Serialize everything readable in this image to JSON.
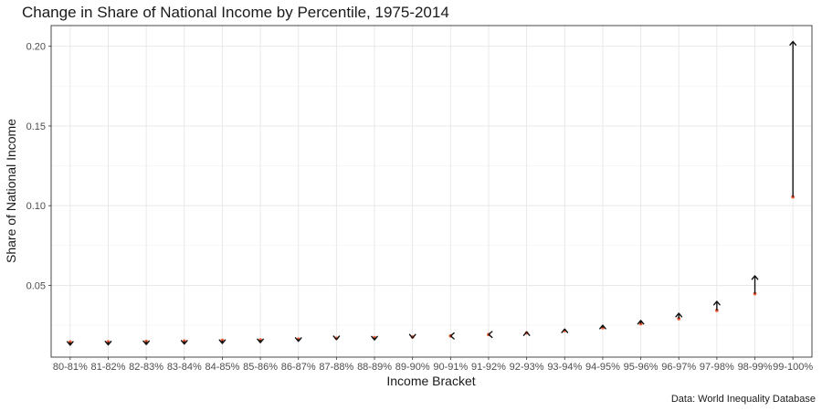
{
  "chart_data": {
    "type": "scatter",
    "title": "Change in Share of National Income by Percentile, 1975-2014",
    "xlabel": "Income Bracket",
    "ylabel": "Share of National Income",
    "caption": "Data: World Inequality Database",
    "categories": [
      "80-81%",
      "81-82%",
      "82-83%",
      "83-84%",
      "84-85%",
      "85-86%",
      "86-87%",
      "87-88%",
      "88-89%",
      "89-90%",
      "90-91%",
      "91-92%",
      "92-93%",
      "93-94%",
      "94-95%",
      "95-96%",
      "96-97%",
      "97-98%",
      "98-99%",
      "99-100%"
    ],
    "series": [
      {
        "values": [
          0.0145,
          0.0146,
          0.0149,
          0.0151,
          0.0155,
          0.0158,
          0.0163,
          0.0168,
          0.0172,
          0.0176,
          0.0183,
          0.0192,
          0.0202,
          0.0216,
          0.0234,
          0.0259,
          0.0291,
          0.0343,
          0.0448,
          0.1055
        ]
      },
      {
        "values": [
          0.0125,
          0.0127,
          0.0129,
          0.0132,
          0.0136,
          0.0141,
          0.0149,
          0.016,
          0.0158,
          0.017,
          0.018,
          0.0195,
          0.0208,
          0.0226,
          0.025,
          0.028,
          0.0325,
          0.04,
          0.056,
          0.203
        ]
      }
    ],
    "yticks": [
      "0.05",
      "0.10",
      "0.15",
      "0.20"
    ],
    "ylim": [
      0.005,
      0.213
    ],
    "grid": true,
    "legend": "none",
    "colors": {
      "start_point": "#f0603a",
      "arrow": "#111111",
      "grid": "#e6e6e6"
    }
  }
}
